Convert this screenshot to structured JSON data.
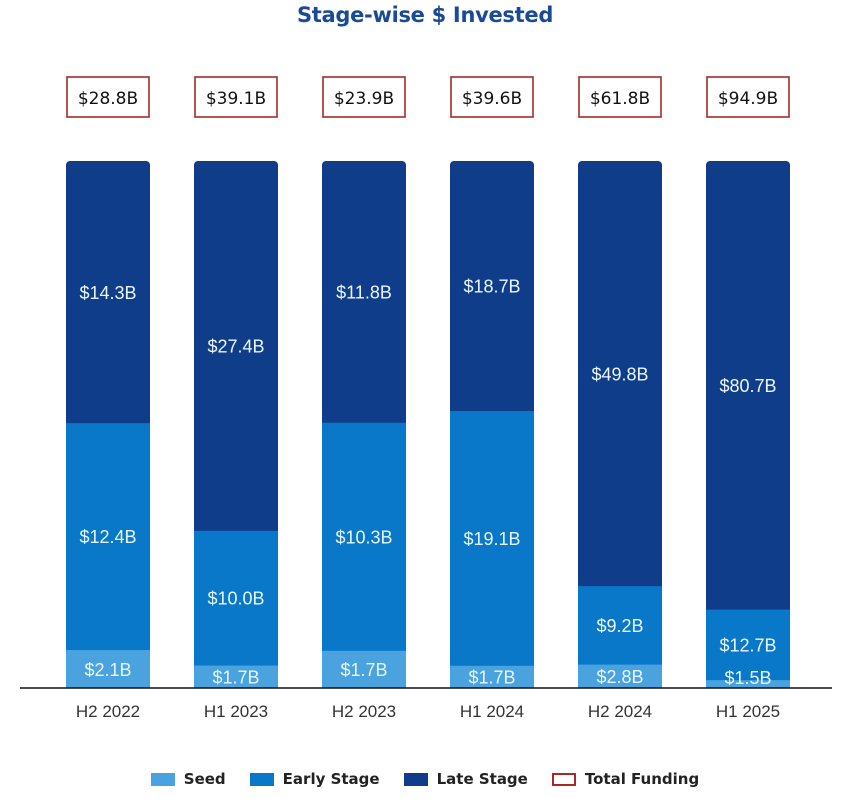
{
  "chart_data": {
    "type": "bar",
    "stacked": true,
    "normalized": true,
    "title": "Stage-wise $ Invested",
    "xlabel": "",
    "ylabel": "",
    "grid": false,
    "legend_position": "bottom",
    "categories": [
      "H2 2022",
      "H1 2023",
      "H2 2023",
      "H1 2024",
      "H2 2024",
      "H1 2025"
    ],
    "series": [
      {
        "name": "Seed",
        "color": "#4aa3df",
        "values": [
          2.1,
          1.7,
          1.7,
          1.7,
          2.8,
          1.5
        ],
        "labels": [
          "$2.1B",
          "$1.7B",
          "$1.7B",
          "$1.7B",
          "$2.8B",
          "$1.5B"
        ]
      },
      {
        "name": "Early Stage",
        "color": "#0a78c8",
        "values": [
          12.4,
          10.0,
          10.3,
          19.1,
          9.2,
          12.7
        ],
        "labels": [
          "$12.4B",
          "$10.0B",
          "$10.3B",
          "$19.1B",
          "$9.2B",
          "$12.7B"
        ]
      },
      {
        "name": "Late Stage",
        "color": "#103d8a",
        "values": [
          14.3,
          27.4,
          11.8,
          18.7,
          49.8,
          80.7
        ],
        "labels": [
          "$14.3B",
          "$27.4B",
          "$11.8B",
          "$18.7B",
          "$49.8B",
          "$80.7B"
        ]
      }
    ],
    "totals": {
      "name": "Total Funding",
      "color": "#a52a2a",
      "values": [
        28.8,
        39.1,
        23.9,
        39.6,
        61.8,
        94.9
      ],
      "labels": [
        "$28.8B",
        "$39.1B",
        "$23.9B",
        "$39.6B",
        "$61.8B",
        "$94.9B"
      ]
    },
    "unit": "USD billions"
  },
  "legend": [
    {
      "label": "Seed",
      "color": "#4aa3df",
      "style": "fill"
    },
    {
      "label": "Early Stage",
      "color": "#0a78c8",
      "style": "fill"
    },
    {
      "label": "Late Stage",
      "color": "#103d8a",
      "style": "fill"
    },
    {
      "label": "Total Funding",
      "color": "#a52a2a",
      "style": "outline"
    }
  ]
}
